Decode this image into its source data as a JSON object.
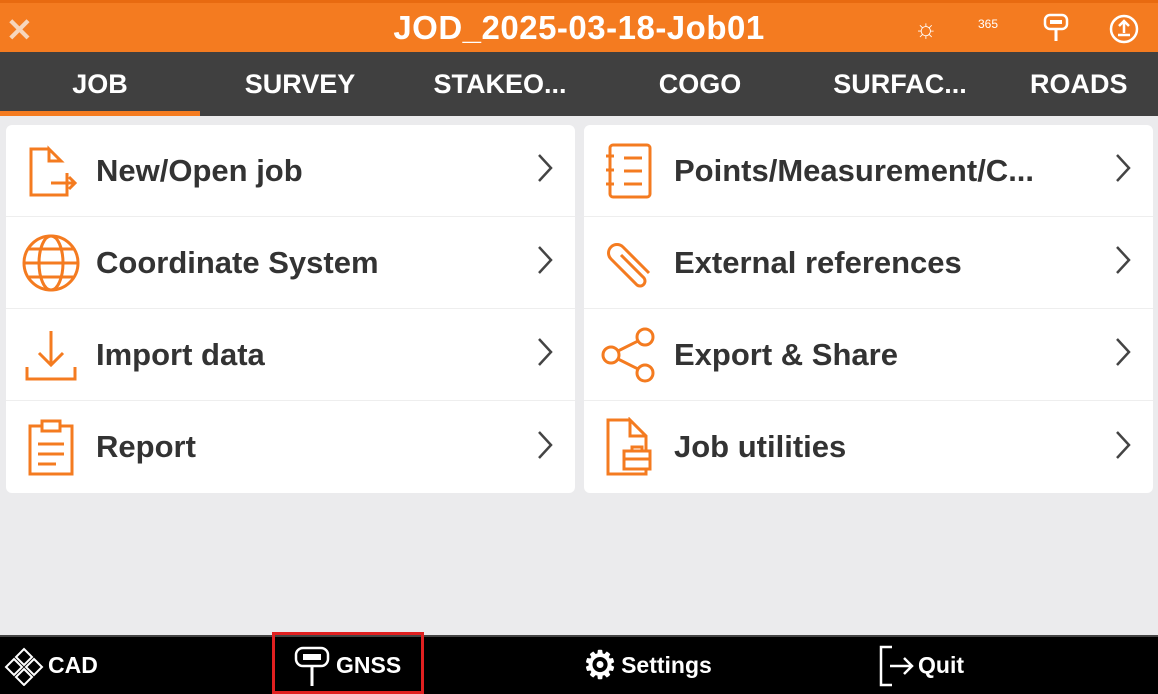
{
  "header": {
    "title": "JOD_2025-03-18-Job01",
    "icons": [
      "app-logo-icon",
      "brightness-icon",
      "x365-icon",
      "gnss-receiver-icon",
      "upload-icon"
    ],
    "x365_label": "365"
  },
  "tabs": [
    {
      "label": "JOB",
      "active": true
    },
    {
      "label": "SURVEY"
    },
    {
      "label": "STAKEO..."
    },
    {
      "label": "COGO"
    },
    {
      "label": "SURFAC..."
    },
    {
      "label": "ROADS"
    }
  ],
  "left_menu": [
    {
      "label": "New/Open job",
      "icon": "file-open-icon"
    },
    {
      "label": "Coordinate System",
      "icon": "globe-icon"
    },
    {
      "label": "Import data",
      "icon": "download-icon"
    },
    {
      "label": "Report",
      "icon": "clipboard-icon"
    }
  ],
  "right_menu": [
    {
      "label": "Points/Measurement/C...",
      "icon": "list-book-icon"
    },
    {
      "label": "External references",
      "icon": "paperclip-icon"
    },
    {
      "label": "Export & Share",
      "icon": "share-icon"
    },
    {
      "label": "Job utilities",
      "icon": "file-briefcase-icon"
    }
  ],
  "bottom": {
    "cad": "CAD",
    "gnss": "GNSS",
    "settings": "Settings",
    "quit": "Quit"
  },
  "colors": {
    "accent": "#f47b20",
    "tabbar": "#404040",
    "highlight": "#e02020"
  }
}
